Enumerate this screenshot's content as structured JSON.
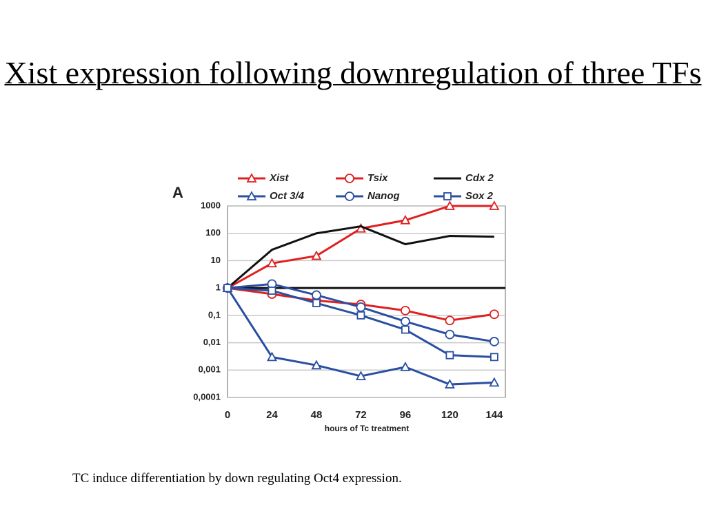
{
  "title": "Xist expression following downregulation of three TFs",
  "caption": "TC induce differentiation by down regulating Oct4 expression.",
  "chart_data": {
    "type": "line",
    "panel_label": "A",
    "xlabel": "hours of Tc treatment",
    "x": [
      0,
      24,
      48,
      72,
      96,
      120,
      144
    ],
    "xlim": [
      0,
      150
    ],
    "xticks": [
      0,
      24,
      48,
      72,
      96,
      120,
      144
    ],
    "ylim": [
      0.0001,
      1000
    ],
    "log_y": true,
    "yticks": [
      1000,
      100,
      10,
      1,
      {
        "value": 0.1,
        "label": "0,1"
      },
      {
        "value": 0.01,
        "label": "0,01"
      },
      {
        "value": 0.001,
        "label": "0,001"
      },
      {
        "value": 0.0001,
        "label": "0,0001"
      }
    ],
    "grid": true,
    "hline": 1,
    "series": [
      {
        "name": "Xist",
        "color": "#e02020",
        "marker": "triangle",
        "values": [
          1,
          8,
          15,
          150,
          300,
          1000,
          1000
        ]
      },
      {
        "name": "Tsix",
        "color": "#e02020",
        "marker": "circle",
        "values": [
          1,
          0.6,
          0.35,
          0.25,
          0.15,
          0.065,
          0.11
        ]
      },
      {
        "name": "Cdx 2",
        "color": "#111111",
        "marker": "none",
        "values": [
          1,
          25,
          100,
          180,
          40,
          80,
          75
        ]
      },
      {
        "name": "Oct 3/4",
        "color": "#2a4fa0",
        "marker": "triangle",
        "values": [
          1,
          0.003,
          0.0015,
          0.0006,
          0.0013,
          0.0003,
          0.00035
        ]
      },
      {
        "name": "Nanog",
        "color": "#2a4fa0",
        "marker": "circle",
        "values": [
          1,
          1.4,
          0.55,
          0.2,
          0.06,
          0.02,
          0.011
        ]
      },
      {
        "name": "Sox 2",
        "color": "#2a4fa0",
        "marker": "square",
        "values": [
          1,
          0.8,
          0.28,
          0.1,
          0.03,
          0.0035,
          0.003
        ]
      }
    ]
  }
}
